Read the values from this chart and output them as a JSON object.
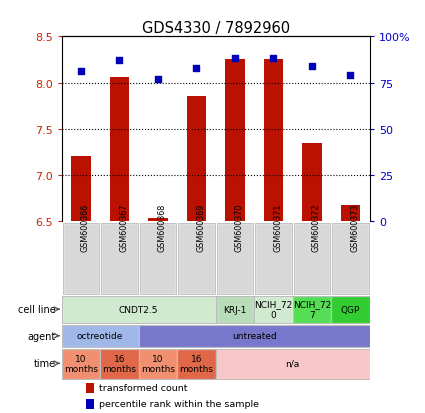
{
  "title": "GDS4330 / 7892960",
  "samples": [
    "GSM600366",
    "GSM600367",
    "GSM600368",
    "GSM600369",
    "GSM600370",
    "GSM600371",
    "GSM600372",
    "GSM600373"
  ],
  "transformed_count": [
    7.2,
    8.06,
    6.53,
    7.85,
    8.25,
    8.25,
    7.35,
    6.68
  ],
  "percentile_rank": [
    81,
    87,
    77,
    83,
    88,
    88,
    84,
    79
  ],
  "ylim_left": [
    6.5,
    8.5
  ],
  "ylim_right": [
    0,
    100
  ],
  "yticks_left": [
    6.5,
    7.0,
    7.5,
    8.0,
    8.5
  ],
  "yticks_right": [
    0,
    25,
    50,
    75,
    100
  ],
  "ytick_labels_right": [
    "0",
    "25",
    "50",
    "75",
    "100%"
  ],
  "bar_color": "#bb1100",
  "dot_color": "#0000bb",
  "bar_bottom": 6.5,
  "cell_line_groups": [
    {
      "label": "CNDT2.5",
      "start": 0,
      "end": 3,
      "color": "#d0ead0"
    },
    {
      "label": "KRJ-1",
      "start": 4,
      "end": 4,
      "color": "#b8ddb8"
    },
    {
      "label": "NCIH_72\n0",
      "start": 5,
      "end": 5,
      "color": "#d0ead0"
    },
    {
      "label": "NCIH_72\n7",
      "start": 6,
      "end": 6,
      "color": "#55dd55"
    },
    {
      "label": "QGP",
      "start": 7,
      "end": 7,
      "color": "#33cc33"
    }
  ],
  "agent_groups": [
    {
      "label": "octreotide",
      "start": 0,
      "end": 1,
      "color": "#a0b8e8"
    },
    {
      "label": "untreated",
      "start": 2,
      "end": 7,
      "color": "#7777cc"
    }
  ],
  "time_groups": [
    {
      "label": "10\nmonths",
      "start": 0,
      "end": 0,
      "color": "#f09070"
    },
    {
      "label": "16\nmonths",
      "start": 1,
      "end": 1,
      "color": "#e06848"
    },
    {
      "label": "10\nmonths",
      "start": 2,
      "end": 2,
      "color": "#f09070"
    },
    {
      "label": "16\nmonths",
      "start": 3,
      "end": 3,
      "color": "#e06848"
    },
    {
      "label": "n/a",
      "start": 4,
      "end": 7,
      "color": "#f8c8c8"
    }
  ],
  "legend_items": [
    {
      "label": "transformed count",
      "color": "#bb1100"
    },
    {
      "label": "percentile rank within the sample",
      "color": "#0000bb"
    }
  ],
  "row_labels": [
    "cell line",
    "agent",
    "time"
  ],
  "background_color": "#ffffff",
  "axis_left_color": "#cc2200",
  "axis_right_color": "#0000cc",
  "sample_box_color": "#d8d8d8"
}
